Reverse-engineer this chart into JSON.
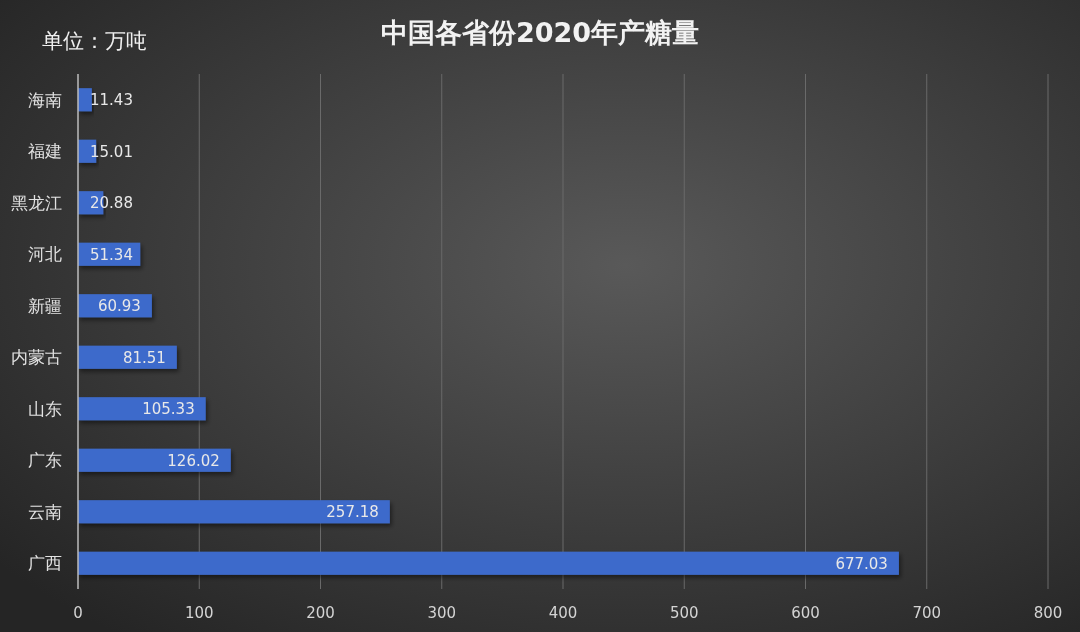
{
  "chart_data": {
    "type": "bar",
    "orientation": "horizontal",
    "title": "中国各省份2020年产糖量",
    "annotations": [
      "单位：万吨"
    ],
    "categories": [
      "海南",
      "福建",
      "黑龙江",
      "河北",
      "新疆",
      "内蒙古",
      "山东",
      "广东",
      "云南",
      "广西"
    ],
    "values": [
      11.43,
      15.01,
      20.88,
      51.34,
      60.93,
      81.51,
      105.33,
      126.02,
      257.18,
      677.03
    ],
    "color": "#3d6acb",
    "xlim": [
      0,
      800
    ],
    "xticks": [
      0,
      100,
      200,
      300,
      400,
      500,
      600,
      700,
      800
    ],
    "grid": "x",
    "data_labels": true
  }
}
